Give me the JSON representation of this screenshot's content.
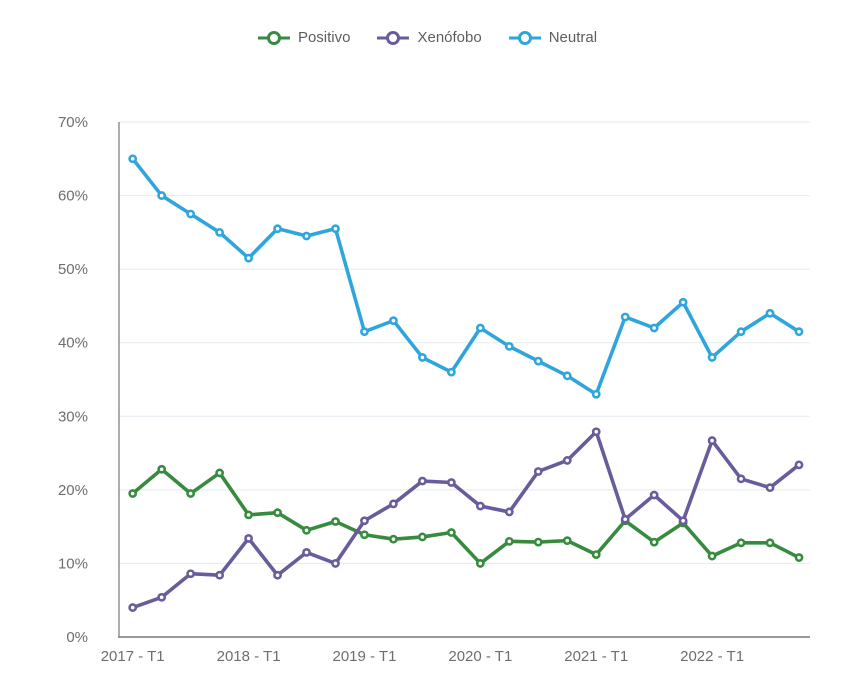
{
  "colors": {
    "background": "#ffffff",
    "grid": "#e4ebf2",
    "axis": "#8a8a8a",
    "tick_label": "#6e6e6e",
    "legend_text": "#5e5e5e"
  },
  "chart_data": {
    "type": "line",
    "title": "",
    "legend_position": "top-center",
    "grid": true,
    "n_points": 24,
    "x_axis": {
      "tick_labels": [
        "2017 - T1",
        "2018 - T1",
        "2019 - T1",
        "2020 - T1",
        "2021 - T1",
        "2022 - T1"
      ],
      "points_per_label": 4
    },
    "y_axis": {
      "min": 0,
      "max": 70,
      "step": 10,
      "tick_labels": [
        "0%",
        "10%",
        "20%",
        "30%",
        "40%",
        "50%",
        "60%",
        "70%"
      ]
    },
    "series": [
      {
        "name": "Positivo",
        "color": "#378b3e",
        "values": [
          19.5,
          22.8,
          19.5,
          22.3,
          16.6,
          16.9,
          14.5,
          15.7,
          13.9,
          13.3,
          13.6,
          14.2,
          10.0,
          13.0,
          12.9,
          13.1,
          11.2,
          15.8,
          12.9,
          15.5,
          11.0,
          12.8,
          12.8,
          10.8
        ]
      },
      {
        "name": "Xenófobo",
        "color": "#6a5b9c",
        "values": [
          4.0,
          5.4,
          8.6,
          8.4,
          13.4,
          8.4,
          11.5,
          10.0,
          15.8,
          18.1,
          21.2,
          21.0,
          17.8,
          17.0,
          22.5,
          24.0,
          27.9,
          16.0,
          19.3,
          15.8,
          26.7,
          21.5,
          20.3,
          23.4
        ]
      },
      {
        "name": "Neutral",
        "color": "#2ea6dc",
        "values": [
          65.0,
          60.0,
          57.5,
          55.0,
          51.5,
          55.5,
          54.5,
          55.5,
          41.5,
          43.0,
          38.0,
          36.0,
          42.0,
          39.5,
          37.5,
          35.5,
          33.0,
          43.5,
          42.0,
          45.5,
          38.0,
          41.5,
          44.0,
          41.5
        ]
      }
    ]
  }
}
